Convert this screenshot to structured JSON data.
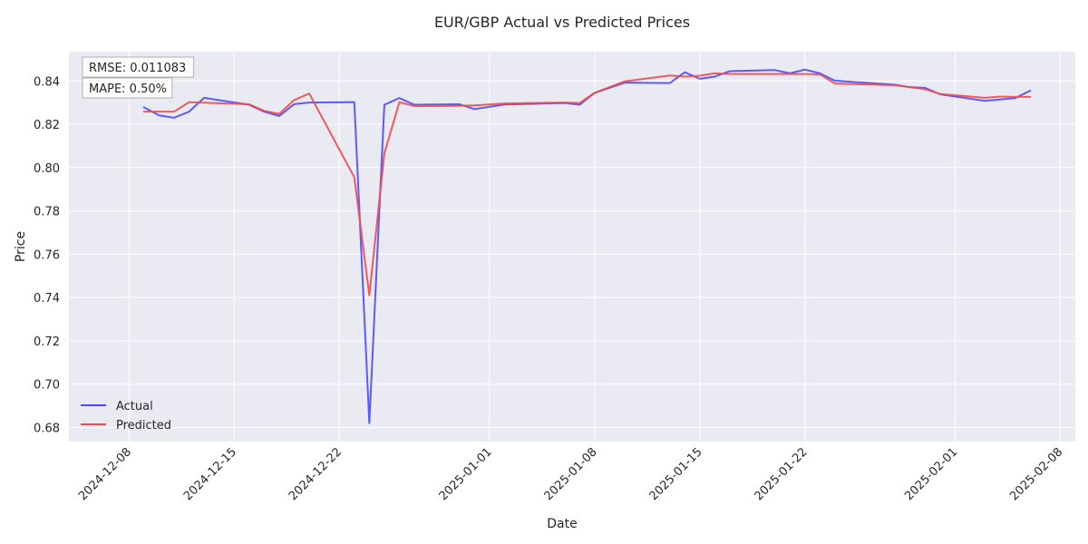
{
  "chart_data": {
    "type": "line",
    "title": "EUR/GBP Actual vs Predicted Prices",
    "xlabel": "Date",
    "ylabel": "Price",
    "xlim": [
      "2024-12-04",
      "2025-02-09"
    ],
    "ylim": [
      0.6735,
      0.8535
    ],
    "x_ticks": [
      "2024-12-08",
      "2024-12-15",
      "2024-12-22",
      "2025-01-01",
      "2025-01-08",
      "2025-01-15",
      "2025-01-22",
      "2025-02-01",
      "2025-02-08"
    ],
    "y_ticks": [
      0.68,
      0.7,
      0.72,
      0.74,
      0.76,
      0.78,
      0.8,
      0.82,
      0.84
    ],
    "grid": true,
    "legend_position": "bottom-left",
    "annotations": [
      "RMSE: 0.011083",
      "MAPE: 0.50%"
    ],
    "series": [
      {
        "name": "Actual",
        "color": "#4a4aff",
        "points": [
          [
            "2024-12-09",
            0.8278
          ],
          [
            "2024-12-10",
            0.8241
          ],
          [
            "2024-12-11",
            0.823
          ],
          [
            "2024-12-12",
            0.8258
          ],
          [
            "2024-12-13",
            0.8322
          ],
          [
            "2024-12-16",
            0.829
          ],
          [
            "2024-12-17",
            0.8258
          ],
          [
            "2024-12-18",
            0.8238
          ],
          [
            "2024-12-19",
            0.8293
          ],
          [
            "2024-12-20",
            0.83
          ],
          [
            "2024-12-23",
            0.8302
          ],
          [
            "2024-12-24",
            0.682
          ],
          [
            "2024-12-25",
            0.829
          ],
          [
            "2024-12-26",
            0.8321
          ],
          [
            "2024-12-27",
            0.829
          ],
          [
            "2024-12-30",
            0.8292
          ],
          [
            "2024-12-31",
            0.827
          ],
          [
            "2025-01-02",
            0.8291
          ],
          [
            "2025-01-06",
            0.8298
          ],
          [
            "2025-01-07",
            0.829
          ],
          [
            "2025-01-08",
            0.8345
          ],
          [
            "2025-01-10",
            0.8392
          ],
          [
            "2025-01-13",
            0.839
          ],
          [
            "2025-01-14",
            0.844
          ],
          [
            "2025-01-15",
            0.841
          ],
          [
            "2025-01-16",
            0.842
          ],
          [
            "2025-01-17",
            0.8445
          ],
          [
            "2025-01-20",
            0.845
          ],
          [
            "2025-01-21",
            0.8435
          ],
          [
            "2025-01-22",
            0.8452
          ],
          [
            "2025-01-23",
            0.8435
          ],
          [
            "2025-01-24",
            0.8401
          ],
          [
            "2025-01-28",
            0.8382
          ],
          [
            "2025-01-29",
            0.8371
          ],
          [
            "2025-01-30",
            0.8368
          ],
          [
            "2025-01-31",
            0.8338
          ],
          [
            "2025-02-03",
            0.8308
          ],
          [
            "2025-02-05",
            0.8321
          ],
          [
            "2025-02-06",
            0.8355
          ]
        ]
      },
      {
        "name": "Predicted",
        "color": "#f04a4a",
        "points": [
          [
            "2024-12-09",
            0.8258
          ],
          [
            "2024-12-11",
            0.8258
          ],
          [
            "2024-12-12",
            0.8302
          ],
          [
            "2024-12-16",
            0.8292
          ],
          [
            "2024-12-17",
            0.8262
          ],
          [
            "2024-12-18",
            0.8248
          ],
          [
            "2024-12-19",
            0.8312
          ],
          [
            "2024-12-20",
            0.8342
          ],
          [
            "2024-12-23",
            0.7955
          ],
          [
            "2024-12-24",
            0.741
          ],
          [
            "2024-12-25",
            0.8065
          ],
          [
            "2024-12-26",
            0.8302
          ],
          [
            "2024-12-27",
            0.8284
          ],
          [
            "2024-12-30",
            0.8285
          ],
          [
            "2024-12-31",
            0.8287
          ],
          [
            "2025-01-02",
            0.8296
          ],
          [
            "2025-01-06",
            0.83
          ],
          [
            "2025-01-07",
            0.8298
          ],
          [
            "2025-01-08",
            0.8345
          ],
          [
            "2025-01-10",
            0.8398
          ],
          [
            "2025-01-13",
            0.8425
          ],
          [
            "2025-01-14",
            0.842
          ],
          [
            "2025-01-15",
            0.8424
          ],
          [
            "2025-01-16",
            0.8435
          ],
          [
            "2025-01-17",
            0.8432
          ],
          [
            "2025-01-20",
            0.8432
          ],
          [
            "2025-01-21",
            0.8432
          ],
          [
            "2025-01-22",
            0.8432
          ],
          [
            "2025-01-23",
            0.843
          ],
          [
            "2025-01-24",
            0.8388
          ],
          [
            "2025-01-28",
            0.838
          ],
          [
            "2025-01-29",
            0.8371
          ],
          [
            "2025-01-30",
            0.8362
          ],
          [
            "2025-01-31",
            0.834
          ],
          [
            "2025-02-03",
            0.8322
          ],
          [
            "2025-02-04",
            0.8328
          ],
          [
            "2025-02-05",
            0.8326
          ],
          [
            "2025-02-06",
            0.8326
          ]
        ]
      }
    ]
  }
}
